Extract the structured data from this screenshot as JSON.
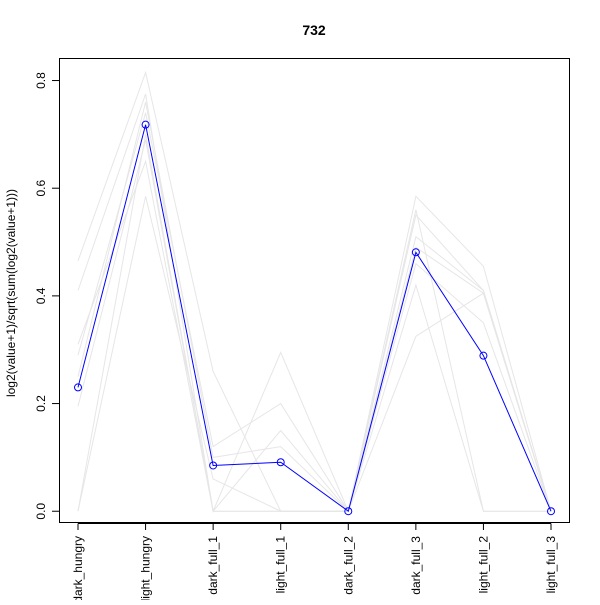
{
  "chart_data": {
    "type": "line",
    "title": "732",
    "xlabel": "",
    "ylabel": "log2(value+1)/sqrt(sum(log2(value+1)))",
    "categories": [
      "dark_hungry",
      "light_hungry",
      "dark_full_1",
      "light_full_1",
      "dark_full_2",
      "dark_full_3",
      "light_full_2",
      "light_full_3"
    ],
    "ylim": [
      -0.02,
      0.84
    ],
    "yticks": [
      0.0,
      0.2,
      0.4,
      0.6,
      0.8
    ],
    "ytick_labels": [
      "0.0",
      "0.2",
      "0.4",
      "0.6",
      "0.8"
    ],
    "highlight_series": {
      "values": [
        0.23,
        0.718,
        0.085,
        0.091,
        0.0,
        0.481,
        0.289,
        0.0
      ],
      "color": "#0000ff",
      "marker": "open-circle"
    },
    "background_series": [
      {
        "values": [
          0.465,
          0.815,
          0.26,
          0.0,
          0.0,
          0.585,
          0.455,
          0.0
        ]
      },
      {
        "values": [
          0.41,
          0.775,
          0.0,
          0.295,
          0.0,
          0.55,
          0.41,
          0.0
        ]
      },
      {
        "values": [
          0.29,
          0.74,
          0.12,
          0.2,
          0.0,
          0.51,
          0.41,
          0.0
        ]
      },
      {
        "values": [
          0.195,
          0.69,
          0.0,
          0.15,
          0.0,
          0.49,
          0.405,
          0.0
        ]
      },
      {
        "values": [
          0.0,
          0.585,
          0.06,
          0.0,
          0.0,
          0.325,
          0.405,
          0.0
        ]
      },
      {
        "values": [
          0.31,
          0.65,
          0.0,
          0.0,
          0.0,
          0.42,
          0.0,
          0.0
        ]
      },
      {
        "values": [
          0.25,
          0.76,
          0.1,
          0.12,
          0.0,
          0.46,
          0.35,
          0.0
        ]
      },
      {
        "values": [
          0.0,
          0.7,
          0.0,
          0.0,
          0.0,
          0.56,
          0.0,
          0.0
        ]
      }
    ],
    "background_color": "#e6e6e6",
    "grid": false,
    "legend": "none"
  }
}
